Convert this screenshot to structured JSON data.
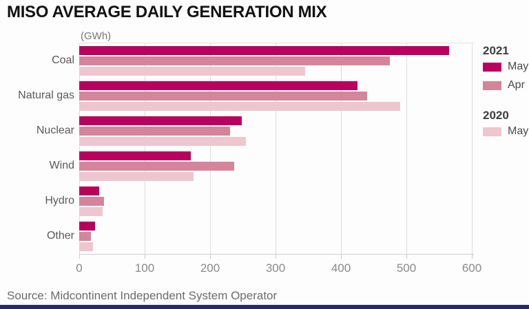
{
  "title": "MISO AVERAGE DAILY GENERATION MIX",
  "unit_label": "(GWh)",
  "source": "Source: Midcontinent Independent System Operator",
  "colors": {
    "series_2021_may": "#b8005e",
    "series_2021_apr": "#d4859b",
    "series_2020_may": "#eec6cf",
    "gridline": "#dcdcdc",
    "footer_bar": "#272c63",
    "title_text": "#111111",
    "axis_text": "#8a8a8a"
  },
  "legend": {
    "groups": [
      {
        "year": "2021",
        "items": [
          {
            "label": "May",
            "color": "#b8005e"
          },
          {
            "label": "Apr",
            "color": "#d4859b"
          }
        ]
      },
      {
        "year": "2020",
        "items": [
          {
            "label": "May",
            "color": "#eec6cf"
          }
        ]
      }
    ]
  },
  "chart_data": {
    "type": "bar",
    "orientation": "horizontal",
    "title": "MISO AVERAGE DAILY GENERATION MIX",
    "xlabel": "(GWh)",
    "ylabel": "",
    "categories": [
      "Coal",
      "Natural gas",
      "Nuclear",
      "Wind",
      "Hydro",
      "Other"
    ],
    "series": [
      {
        "name": "2021 May",
        "color": "#b8005e",
        "values": [
          565,
          425,
          248,
          170,
          30,
          24
        ]
      },
      {
        "name": "2021 Apr",
        "color": "#d4859b",
        "values": [
          475,
          440,
          230,
          237,
          38,
          18
        ]
      },
      {
        "name": "2020 May",
        "color": "#eec6cf",
        "values": [
          345,
          490,
          255,
          175,
          36,
          21
        ]
      }
    ],
    "xlim": [
      0,
      600
    ],
    "xticks": [
      0,
      100,
      200,
      300,
      400,
      500,
      600
    ],
    "grid": true,
    "legend_position": "right"
  }
}
